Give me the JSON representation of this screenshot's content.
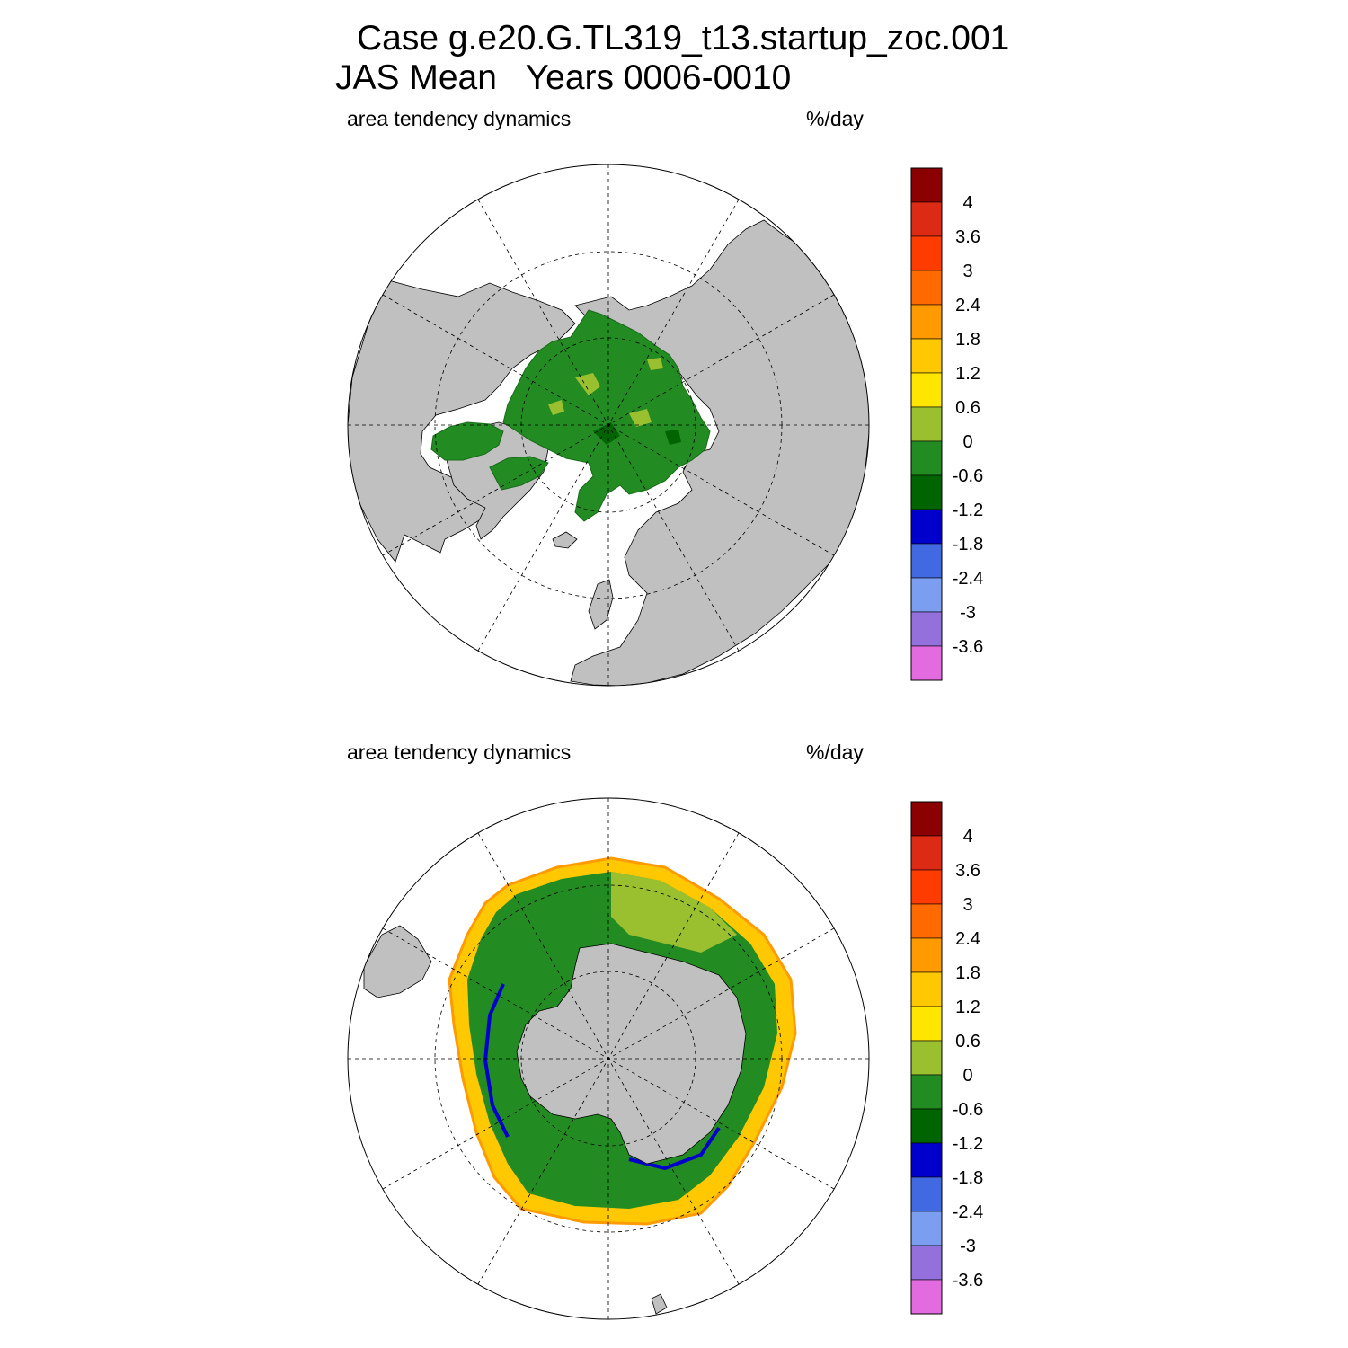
{
  "header": {
    "title_line1": "Case g.e20.G.TL319_t13.startup_zoc.001",
    "title_line2": "JAS Mean   Years 0006-0010"
  },
  "panels": [
    {
      "hemisphere": "north",
      "left_label": "area tendency dynamics",
      "right_label": "%/day"
    },
    {
      "hemisphere": "south",
      "left_label": "area tendency dynamics",
      "right_label": "%/day"
    }
  ],
  "colorbar": {
    "labels": [
      "4",
      "3.6",
      "3",
      "2.4",
      "1.8",
      "1.2",
      "0.6",
      "0",
      "-0.6",
      "-1.2",
      "-1.8",
      "-2.4",
      "-3",
      "-3.6"
    ],
    "colors": [
      "#8b0000",
      "#dc2a14",
      "#ff3c00",
      "#ff6a00",
      "#ff9a00",
      "#ffc800",
      "#ffe600",
      "#9ac030",
      "#228b22",
      "#006400",
      "#0000cd",
      "#4169e1",
      "#7b9ef0",
      "#9370db",
      "#e36be0"
    ]
  },
  "colors": {
    "land": "#c0c0c0",
    "ocean": "#ffffff",
    "ice_neutral": "#228b22",
    "ice_slight_positive": "#9ac030"
  }
}
